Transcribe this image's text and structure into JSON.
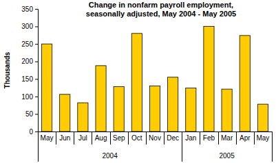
{
  "chart_data": {
    "type": "bar",
    "title": "Change in nonfarm payroll employment, seasonally adjusted, May 2004 - May 2005",
    "y_label": "Thousands",
    "categories": [
      "May",
      "Jun",
      "Jul",
      "Aug",
      "Sep",
      "Oct",
      "Nov",
      "Dec",
      "Jan",
      "Feb",
      "Mar",
      "Apr",
      "May"
    ],
    "category_groups": [
      "2004",
      "2004",
      "2004",
      "2004",
      "2004",
      "2004",
      "2004",
      "2004",
      "2005",
      "2005",
      "2005",
      "2005",
      "2005"
    ],
    "values": [
      250,
      106,
      82,
      188,
      128,
      280,
      130,
      155,
      124,
      300,
      121,
      274,
      78
    ],
    "color": "#ffcc00",
    "ylim": [
      0,
      350
    ],
    "yticks": [
      0,
      50,
      100,
      150,
      200,
      250,
      300,
      350
    ],
    "grid": false
  }
}
